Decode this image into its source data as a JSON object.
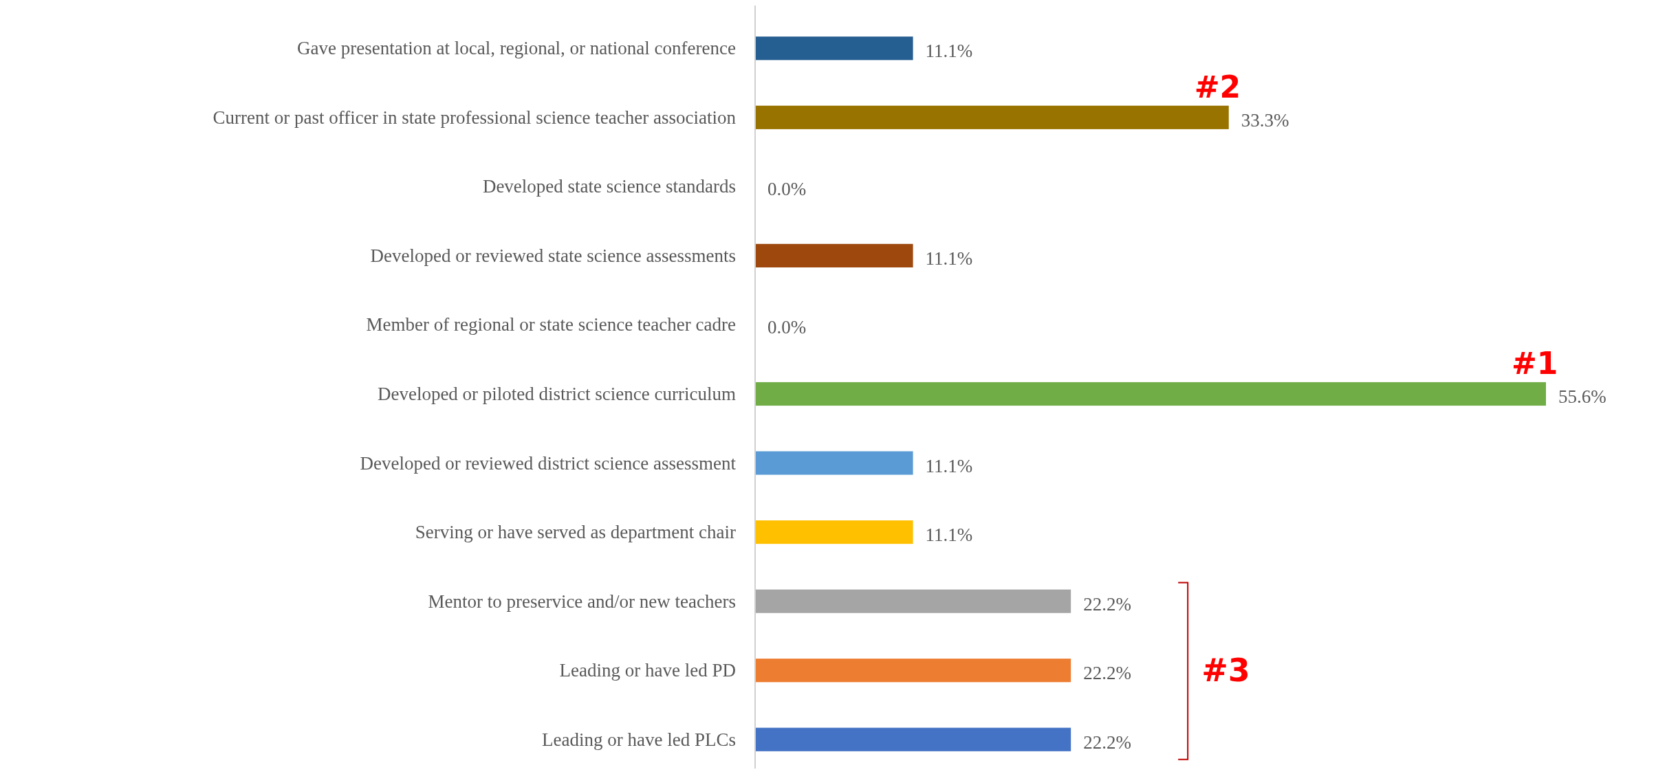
{
  "chart_data": {
    "type": "bar",
    "orientation": "horizontal",
    "categories": [
      "Gave presentation at local, regional, or national conference",
      "Current or past officer in state professional science teacher association",
      "Developed state science standards",
      "Developed or reviewed state science assessments",
      "Member of regional or state science teacher cadre",
      "Developed or piloted district science curriculum",
      "Developed or reviewed district science assessment",
      "Serving or have served as department chair",
      "Mentor to preservice and/or new teachers",
      "Leading or have led PD",
      "Leading or have led PLCs"
    ],
    "values": [
      11.1,
      33.3,
      0,
      11.1,
      0,
      55.6,
      11.1,
      11.1,
      22.2,
      22.2,
      22.2
    ],
    "value_labels": [
      "11.1%",
      "33.3%",
      "0.0%",
      "11.1%",
      "0.0%",
      "55.6%",
      "11.1%",
      "11.1%",
      "22.2%",
      "22.2%",
      "22.2%"
    ],
    "colors": [
      "#255e91",
      "#997300",
      "#7f7f7f",
      "#9e480e",
      "#7f7f7f",
      "#70ad47",
      "#5b9bd5",
      "#ffc000",
      "#a5a5a5",
      "#ed7d31",
      "#4472c4"
    ],
    "annotations": [
      {
        "text": "#2",
        "x": 33.3,
        "y": "Current or past officer in state professional science teacher association"
      },
      {
        "text": "#1",
        "x": 55.6,
        "y": "Developed or piloted district science curriculum"
      },
      "#3"
    ]
  }
}
